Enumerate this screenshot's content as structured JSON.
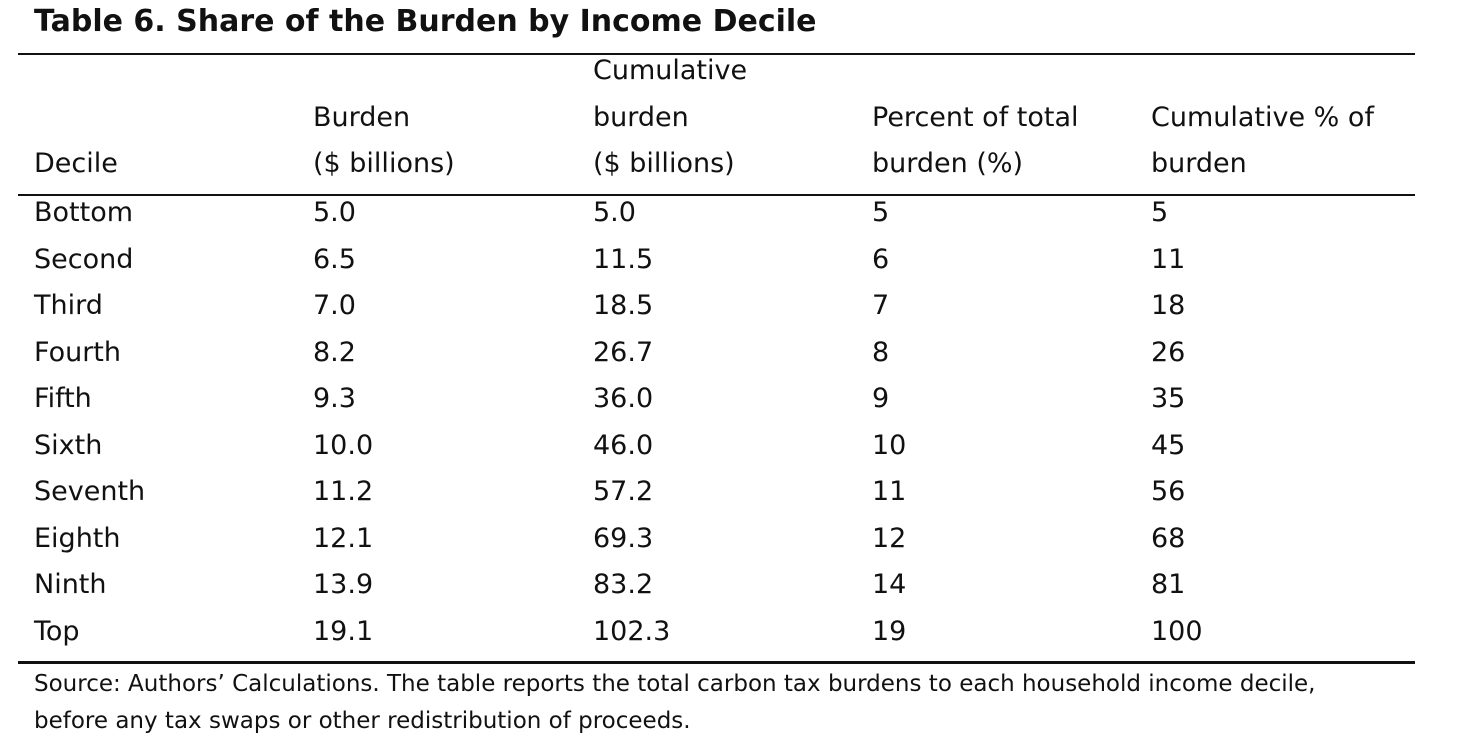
{
  "title": "Table 6.  Share of the Burden by Income Decile",
  "table": {
    "headers": [
      [
        "Decile"
      ],
      [
        "Burden",
        "($ billions)"
      ],
      [
        "Cumulative",
        "burden",
        "($ billions)"
      ],
      [
        "Percent of total",
        "burden (%)"
      ],
      [
        "Cumulative % of",
        "burden"
      ]
    ],
    "rows": [
      [
        "Bottom",
        "5.0",
        "5.0",
        "5",
        "5"
      ],
      [
        "Second",
        "6.5",
        "11.5",
        "6",
        "11"
      ],
      [
        "Third",
        "7.0",
        "18.5",
        "7",
        "18"
      ],
      [
        "Fourth",
        "8.2",
        "26.7",
        "8",
        "26"
      ],
      [
        "Fifth",
        "9.3",
        "36.0",
        "9",
        "35"
      ],
      [
        "Sixth",
        "10.0",
        "46.0",
        "10",
        "45"
      ],
      [
        "Seventh",
        "11.2",
        "57.2",
        "11",
        "56"
      ],
      [
        "Eighth",
        "12.1",
        "69.3",
        "12",
        "68"
      ],
      [
        "Ninth",
        "13.9",
        "83.2",
        "14",
        "81"
      ],
      [
        "Top",
        "19.1",
        "102.3",
        "19",
        "100"
      ]
    ]
  },
  "note": [
    "Source: Authors’ Calculations. The table reports the total carbon tax burdens to each household income decile,",
    "before any tax swaps or other redistribution of proceeds."
  ]
}
